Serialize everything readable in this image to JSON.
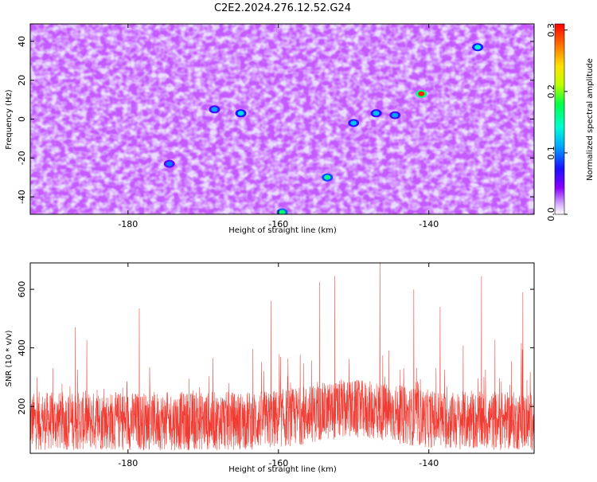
{
  "figure": {
    "title": "C2E2.2024.276.12.52.G24"
  },
  "chart_data": [
    {
      "type": "heatmap",
      "xlabel": "Height of straight line (km)",
      "ylabel": "Frequency (Hz)",
      "xlim": [
        -193,
        -126
      ],
      "ylim": [
        -49,
        49
      ],
      "x_ticks": [
        -180,
        -160,
        -140
      ],
      "y_ticks": [
        -40,
        -20,
        0,
        20,
        40
      ],
      "colorbar": {
        "label": "Normalized spectral amplitude",
        "range": [
          0.0,
          0.31
        ],
        "ticks": [
          0.0,
          0.1,
          0.2,
          0.3
        ],
        "colormap": "rainbow (white-violet-blue-cyan-green-yellow-orange-red)"
      },
      "highlights": [
        {
          "x": -141.0,
          "y": 13,
          "value": 0.3
        },
        {
          "x": -159.5,
          "y": -48,
          "value": 0.17
        },
        {
          "x": -153.5,
          "y": -30,
          "value": 0.16
        },
        {
          "x": -133.5,
          "y": 37,
          "value": 0.14
        },
        {
          "x": -165.0,
          "y": 3,
          "value": 0.13
        },
        {
          "x": -150.0,
          "y": -2,
          "value": 0.12
        },
        {
          "x": -147.0,
          "y": 3,
          "value": 0.12
        },
        {
          "x": -144.5,
          "y": 2,
          "value": 0.11
        },
        {
          "x": -168.5,
          "y": 5,
          "value": 0.11
        },
        {
          "x": -174.5,
          "y": -23,
          "value": 0.1
        }
      ]
    },
    {
      "type": "line",
      "xlabel": "Height of straight line (km)",
      "ylabel": "SNR (10 * v/v)",
      "xlim": [
        -193,
        -126
      ],
      "ylim": [
        40,
        690
      ],
      "x_ticks": [
        -180,
        -160,
        -140
      ],
      "y_ticks": [
        200,
        400,
        600
      ],
      "series": [
        {
          "color": "#ef3b32",
          "peaks": [
            {
              "x": -146.5,
              "y": 690
            },
            {
              "x": -152.5,
              "y": 645
            },
            {
              "x": -133.0,
              "y": 645
            },
            {
              "x": -154.5,
              "y": 625
            },
            {
              "x": -142.0,
              "y": 600
            },
            {
              "x": -127.5,
              "y": 590
            },
            {
              "x": -161.0,
              "y": 560
            },
            {
              "x": -178.5,
              "y": 535
            },
            {
              "x": -138.5,
              "y": 540
            },
            {
              "x": -187.0,
              "y": 470
            }
          ]
        }
      ]
    }
  ]
}
